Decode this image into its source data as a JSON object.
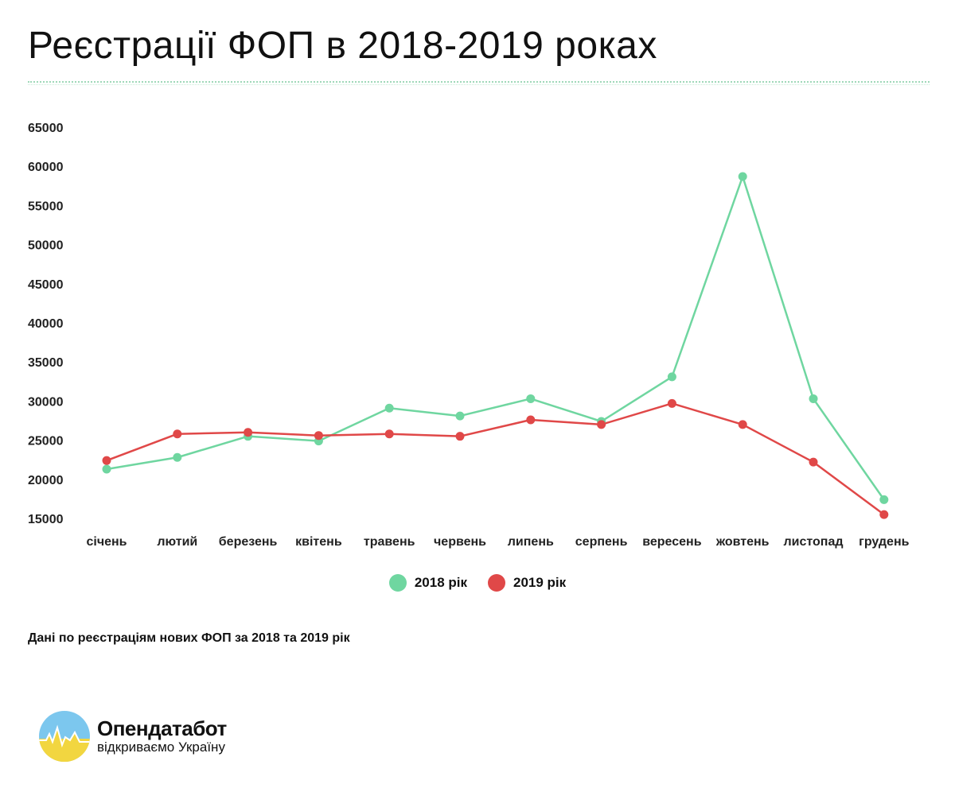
{
  "title": "Реєстрації ФОП в 2018-2019 роках",
  "note": "Дані по реєстраціям нових ФОП за 2018 та 2019 рік",
  "logo": {
    "name": "Опендатабот",
    "tagline": "відкриваємо Україну"
  },
  "chart_data": {
    "type": "line",
    "categories": [
      "січень",
      "лютий",
      "березень",
      "квітень",
      "травень",
      "червень",
      "липень",
      "серпень",
      "вересень",
      "жовтень",
      "листопад",
      "грудень"
    ],
    "series": [
      {
        "name": "2018 рік",
        "color": "#6fd6a0",
        "values": [
          21300,
          22800,
          25500,
          24900,
          29100,
          28100,
          30300,
          27400,
          33100,
          58700,
          30300,
          17400
        ]
      },
      {
        "name": "2019 рік",
        "color": "#e04848",
        "values": [
          22400,
          25800,
          26000,
          25600,
          25800,
          25500,
          27600,
          27000,
          29700,
          27000,
          22200,
          15500
        ]
      }
    ],
    "ylim": [
      15000,
      65000
    ],
    "yticks": [
      "15000",
      "20000",
      "25000",
      "30000",
      "35000",
      "40000",
      "45000",
      "50000",
      "55000",
      "60000",
      "65000"
    ],
    "grid": false,
    "legend": "bottom-center"
  }
}
